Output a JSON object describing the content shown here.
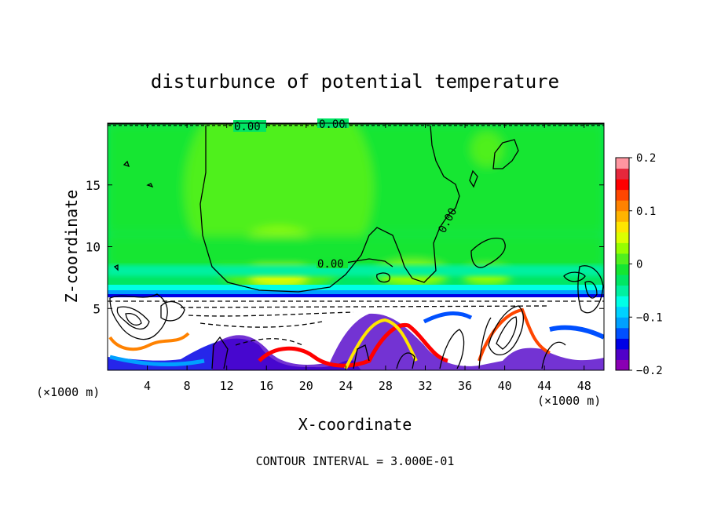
{
  "chart_data": {
    "type": "heatmap",
    "title": "disturbunce of potential temperature",
    "xlabel": "X-coordinate",
    "ylabel": "Z-coordinate",
    "x_unit": "(×1000 m)",
    "x_unit_right": "(×1000 m)",
    "xlim": [
      0,
      50
    ],
    "ylim": [
      0,
      20
    ],
    "x_ticks": [
      4,
      8,
      12,
      16,
      20,
      24,
      28,
      32,
      36,
      40,
      44,
      48
    ],
    "y_ticks": [
      5,
      10,
      15
    ],
    "colorbar": {
      "min": -0.2,
      "max": 0.2,
      "tick_values": [
        0.2,
        0.1,
        0,
        -0.1,
        -0.2
      ],
      "tick_labels": [
        "0.2",
        "0.1",
        "0",
        "−0.1",
        "−0.2"
      ],
      "colors": [
        "#8a00b4",
        "#5000c8",
        "#0000e6",
        "#0050ff",
        "#00a0ff",
        "#00d2ff",
        "#00ffe6",
        "#00f0a0",
        "#00e664",
        "#14e632",
        "#50f01e",
        "#96ff00",
        "#dcff00",
        "#ffe600",
        "#ffb400",
        "#ff8200",
        "#ff4600",
        "#ff0000",
        "#e6283c",
        "#ff96a0"
      ]
    },
    "contour_labels": [
      "0.00",
      "0.00",
      "0.00",
      "0.00"
    ],
    "footer": "CONTOUR INTERVAL = 3.000E-01"
  }
}
